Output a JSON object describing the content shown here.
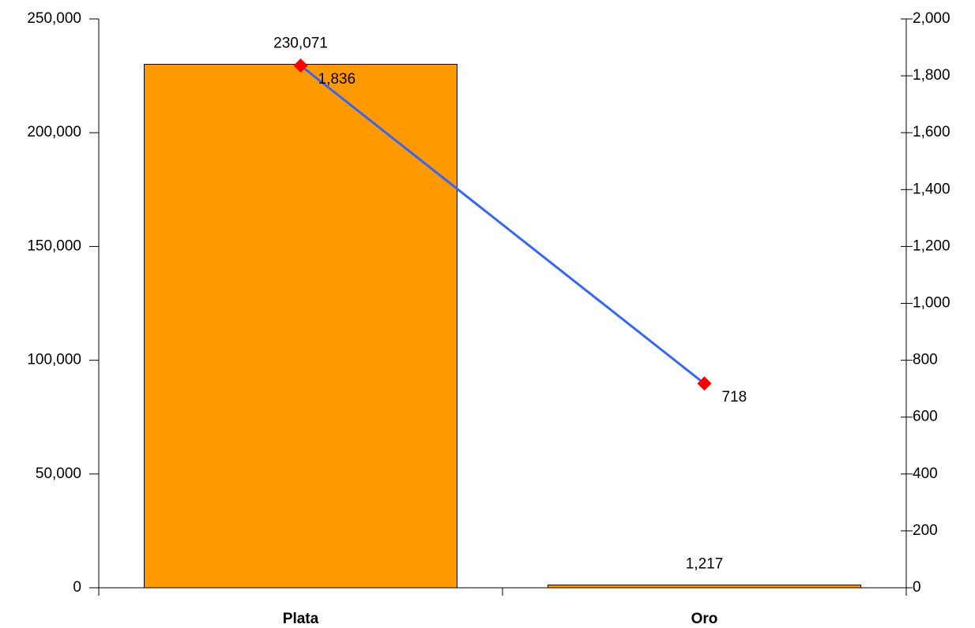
{
  "chart_data": {
    "type": "bar",
    "categories": [
      "Plata",
      "Oro"
    ],
    "series": [
      {
        "type": "bar",
        "color": "#ff9900",
        "label_color": "#ff6600",
        "values": [
          230071,
          1217
        ],
        "value_labels": [
          "230,071",
          "1,217"
        ]
      },
      {
        "type": "line",
        "axis": "y2",
        "color": "#3366ff",
        "marker_color": "#ff0000",
        "label_color": "#0000ff",
        "values": [
          1836,
          718
        ],
        "value_labels": [
          "1,836",
          "718"
        ]
      }
    ],
    "ylim": [
      0,
      250000
    ],
    "yticks": [
      0,
      {
        "value": 50000,
        "label": "50,000"
      },
      {
        "value": 100000,
        "label": "100,000"
      },
      {
        "value": 150000,
        "label": "150,000"
      },
      {
        "value": 200000,
        "label": "200,000"
      },
      {
        "value": 250000,
        "label": "250,000"
      }
    ],
    "y2lim": [
      0,
      2000
    ],
    "y2ticks": [
      0,
      200,
      400,
      600,
      800,
      {
        "value": 1000,
        "label": "1,000"
      },
      {
        "value": 1200,
        "label": "1,200"
      },
      {
        "value": 1400,
        "label": "1,400"
      },
      {
        "value": 1600,
        "label": "1,600"
      },
      {
        "value": 1800,
        "label": "1,800"
      },
      {
        "value": 2000,
        "label": "2,000"
      }
    ]
  }
}
